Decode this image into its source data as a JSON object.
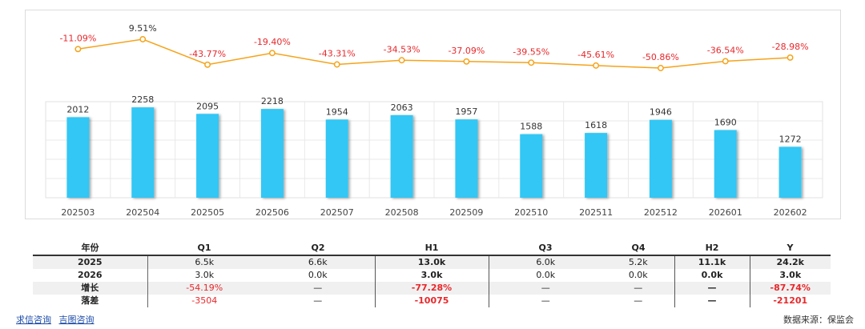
{
  "chart_data": {
    "type": "bar",
    "categories": [
      "202503",
      "202504",
      "202505",
      "202506",
      "202507",
      "202508",
      "202509",
      "202510",
      "202511",
      "202512",
      "202601",
      "202602"
    ],
    "values": [
      2012,
      2258,
      2095,
      2218,
      1954,
      2063,
      1957,
      1588,
      1618,
      1946,
      1690,
      1272
    ],
    "value_labels": [
      "2012",
      "2258",
      "2095",
      "2218",
      "1954",
      "2063",
      "1957",
      "1588",
      "1618",
      "1946",
      "1690",
      "1272"
    ],
    "growth": [
      -11.09,
      9.51,
      -43.77,
      -19.4,
      -43.31,
      -34.53,
      -37.09,
      -39.55,
      -45.61,
      -50.86,
      -36.54,
      -28.98
    ],
    "growth_labels": [
      "-11.09%",
      "9.51%",
      "-43.77%",
      "-19.40%",
      "-43.31%",
      "-34.53%",
      "-37.09%",
      "-39.55%",
      "-45.61%",
      "-50.86%",
      "-36.54%",
      "-28.98%"
    ],
    "bar_color": "#33c7f5",
    "line_color": "#f5a31a",
    "negative_color": "#e8282b",
    "ylim": [
      0,
      2400
    ],
    "grid": true
  },
  "table": {
    "headers": [
      "年份",
      "Q1",
      "Q2",
      "H1",
      "Q3",
      "Q4",
      "H2",
      "Y"
    ],
    "rows": [
      [
        "2025",
        "6.5k",
        "6.6k",
        "13.0k",
        "6.0k",
        "5.2k",
        "11.1k",
        "24.2k"
      ],
      [
        "2026",
        "3.0k",
        "0.0k",
        "3.0k",
        "0.0k",
        "0.0k",
        "0.0k",
        "3.0k"
      ],
      [
        "增长",
        "-54.19%",
        "—",
        "-77.28%",
        "—",
        "—",
        "—",
        "-87.74%"
      ],
      [
        "落差",
        "-3504",
        "—",
        "-10075",
        "—",
        "—",
        "—",
        "-21201"
      ]
    ]
  },
  "footer": {
    "link1": "求信咨询",
    "link2": "吉图咨询",
    "source": "数据来源：保监会"
  }
}
